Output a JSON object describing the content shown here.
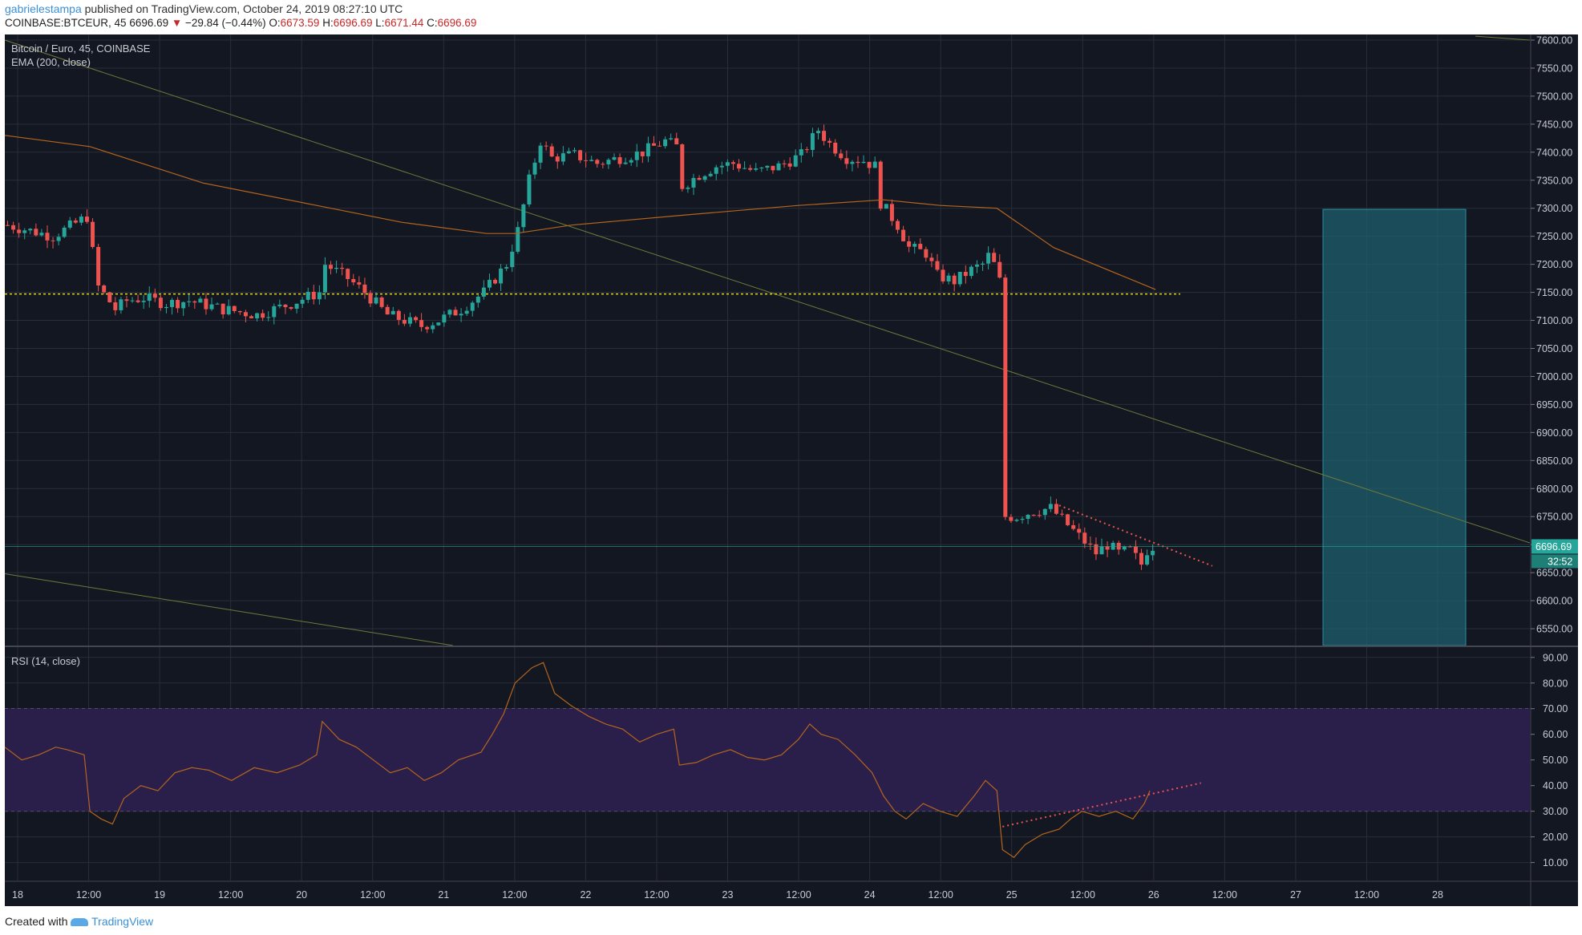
{
  "header": {
    "author": "gabrielestampa",
    "published_text": "published on TradingView.com, October 24, 2019 08:27:10 UTC"
  },
  "symbol_bar": {
    "symbol": "COINBASE:BTCEUR, 45",
    "last": "6696.69",
    "change_arrow": "▼",
    "change": "−29.84 (−0.44%)",
    "open_label": "O:",
    "open": "6673.59",
    "high_label": "H:",
    "high": "6696.69",
    "low_label": "L:",
    "low": "6671.44",
    "close_label": "C:",
    "close": "6696.69"
  },
  "footer": {
    "created_with": "Created with",
    "brand": "TradingView"
  },
  "colors": {
    "background": "#131722",
    "grid": "#2a2e39",
    "up": "#26a69a",
    "down": "#ef5350",
    "ema": "#b5651d",
    "rsi": "#b5651d",
    "rsi_band": "#2a1f4a",
    "level_line": "#e0d81a",
    "trendline": "#6e7a3a",
    "target_box": "#1f5f6e",
    "price_label_bg": "#26a69a"
  },
  "chart_data": [
    {
      "type": "candlestick",
      "title": "Bitcoin / Euro, 45, COINBASE",
      "indicator": "EMA (200, close)",
      "x_ticks": [
        "18",
        "12:00",
        "19",
        "12:00",
        "20",
        "12:00",
        "21",
        "12:00",
        "22",
        "12:00",
        "23",
        "12:00",
        "24",
        "12:00",
        "25",
        "12:00",
        "26",
        "12:00",
        "27",
        "12:00",
        "28"
      ],
      "y_ticks": [
        "7600.00",
        "7550.00",
        "7500.00",
        "7450.00",
        "7400.00",
        "7350.00",
        "7300.00",
        "7250.00",
        "7200.00",
        "7150.00",
        "7100.00",
        "7050.00",
        "7000.00",
        "6950.00",
        "6900.00",
        "6850.00",
        "6800.00",
        "6750.00",
        "6700.00",
        "6650.00",
        "6600.00",
        "6550.00"
      ],
      "ylim": [
        6520,
        7610
      ],
      "current_price_label": "6696.69",
      "countdown_label": "32:52",
      "close_path": [
        [
          0,
          7270
        ],
        [
          8,
          7250
        ],
        [
          14,
          7285
        ],
        [
          16,
          7160
        ],
        [
          19,
          7120
        ],
        [
          21,
          7135
        ],
        [
          24,
          7140
        ],
        [
          28,
          7130
        ],
        [
          32,
          7135
        ],
        [
          38,
          7120
        ],
        [
          44,
          7110
        ],
        [
          50,
          7130
        ],
        [
          55,
          7150
        ],
        [
          56,
          7200
        ],
        [
          60,
          7175
        ],
        [
          63,
          7150
        ],
        [
          67,
          7110
        ],
        [
          70,
          7100
        ],
        [
          73,
          7090
        ],
        [
          76,
          7100
        ],
        [
          80,
          7120
        ],
        [
          84,
          7150
        ],
        [
          88,
          7200
        ],
        [
          90,
          7260
        ],
        [
          92,
          7350
        ],
        [
          94,
          7420
        ],
        [
          96,
          7390
        ],
        [
          100,
          7395
        ],
        [
          104,
          7380
        ],
        [
          108,
          7390
        ],
        [
          112,
          7400
        ],
        [
          116,
          7420
        ],
        [
          118,
          7410
        ],
        [
          119,
          7340
        ],
        [
          122,
          7360
        ],
        [
          125,
          7375
        ],
        [
          128,
          7380
        ],
        [
          132,
          7365
        ],
        [
          136,
          7375
        ],
        [
          140,
          7395
        ],
        [
          143,
          7440
        ],
        [
          145,
          7415
        ],
        [
          148,
          7390
        ],
        [
          151,
          7385
        ],
        [
          153,
          7375
        ],
        [
          154,
          7310
        ],
        [
          157,
          7270
        ],
        [
          159,
          7230
        ],
        [
          162,
          7220
        ],
        [
          164,
          7180
        ],
        [
          167,
          7170
        ],
        [
          170,
          7190
        ],
        [
          172,
          7200
        ],
        [
          173,
          7215
        ],
        [
          174,
          7200
        ],
        [
          175,
          7170
        ],
        [
          176,
          6750
        ],
        [
          178,
          6750
        ],
        [
          181,
          6760
        ],
        [
          184,
          6765
        ],
        [
          186,
          6745
        ],
        [
          188,
          6725
        ],
        [
          190,
          6705
        ],
        [
          192,
          6685
        ],
        [
          194,
          6700
        ],
        [
          196,
          6685
        ],
        [
          198,
          6690
        ],
        [
          200,
          6665
        ],
        [
          201,
          6690
        ],
        [
          202,
          6697
        ]
      ],
      "ema200": [
        [
          0,
          7430
        ],
        [
          15,
          7410
        ],
        [
          35,
          7345
        ],
        [
          55,
          7305
        ],
        [
          70,
          7275
        ],
        [
          85,
          7255
        ],
        [
          90,
          7255
        ],
        [
          100,
          7270
        ],
        [
          120,
          7288
        ],
        [
          140,
          7305
        ],
        [
          155,
          7315
        ],
        [
          165,
          7305
        ],
        [
          175,
          7300
        ],
        [
          185,
          7230
        ],
        [
          203,
          7155
        ]
      ],
      "level_line": 7147,
      "trendlines": [
        {
          "from": [
            0,
            7600
          ],
          "to": [
            330,
            6700
          ]
        },
        {
          "from": [
            0,
            6650
          ],
          "to": [
            95,
            6520
          ]
        },
        {
          "from": [
            315,
            7610
          ],
          "to": [
            330,
            7600
          ]
        }
      ],
      "target_box": {
        "x": [
          283,
          314
        ],
        "y": [
          6520,
          7298
        ]
      },
      "resistance_dotted": {
        "from": [
          186,
          6770
        ],
        "to": [
          213,
          6662
        ]
      }
    },
    {
      "type": "line",
      "title": "RSI (14, close)",
      "y_ticks": [
        "90.00",
        "80.00",
        "70.00",
        "60.00",
        "50.00",
        "40.00",
        "30.00",
        "20.00",
        "10.00"
      ],
      "ylim": [
        3,
        94
      ],
      "bands": [
        30,
        70
      ],
      "rsi": [
        [
          0,
          55
        ],
        [
          3,
          50
        ],
        [
          6,
          52
        ],
        [
          9,
          55
        ],
        [
          11,
          54
        ],
        [
          14,
          52
        ],
        [
          15,
          30
        ],
        [
          17,
          27
        ],
        [
          19,
          25
        ],
        [
          21,
          35
        ],
        [
          24,
          40
        ],
        [
          27,
          38
        ],
        [
          30,
          45
        ],
        [
          33,
          47
        ],
        [
          36,
          46
        ],
        [
          40,
          42
        ],
        [
          44,
          47
        ],
        [
          48,
          45
        ],
        [
          52,
          48
        ],
        [
          55,
          52
        ],
        [
          56,
          65
        ],
        [
          59,
          58
        ],
        [
          62,
          55
        ],
        [
          65,
          50
        ],
        [
          68,
          45
        ],
        [
          71,
          47
        ],
        [
          74,
          42
        ],
        [
          77,
          45
        ],
        [
          80,
          50
        ],
        [
          84,
          53
        ],
        [
          86,
          60
        ],
        [
          88,
          68
        ],
        [
          90,
          80
        ],
        [
          93,
          86
        ],
        [
          95,
          88
        ],
        [
          97,
          76
        ],
        [
          100,
          71
        ],
        [
          103,
          67
        ],
        [
          106,
          64
        ],
        [
          109,
          62
        ],
        [
          112,
          57
        ],
        [
          115,
          60
        ],
        [
          118,
          62
        ],
        [
          119,
          48
        ],
        [
          122,
          49
        ],
        [
          125,
          52
        ],
        [
          128,
          54
        ],
        [
          131,
          51
        ],
        [
          134,
          50
        ],
        [
          137,
          52
        ],
        [
          140,
          58
        ],
        [
          142,
          64
        ],
        [
          144,
          60
        ],
        [
          147,
          58
        ],
        [
          150,
          52
        ],
        [
          153,
          45
        ],
        [
          155,
          36
        ],
        [
          157,
          30
        ],
        [
          159,
          27
        ],
        [
          162,
          33
        ],
        [
          165,
          30
        ],
        [
          168,
          28
        ],
        [
          171,
          36
        ],
        [
          173,
          42
        ],
        [
          175,
          38
        ],
        [
          176,
          15
        ],
        [
          178,
          12
        ],
        [
          180,
          17
        ],
        [
          183,
          21
        ],
        [
          186,
          23
        ],
        [
          188,
          27
        ],
        [
          190,
          30
        ],
        [
          193,
          28
        ],
        [
          196,
          30
        ],
        [
          199,
          27
        ],
        [
          201,
          33
        ],
        [
          202,
          38
        ]
      ],
      "divergence_dotted": {
        "from": [
          176,
          24
        ],
        "to": [
          211,
          41
        ]
      }
    }
  ]
}
